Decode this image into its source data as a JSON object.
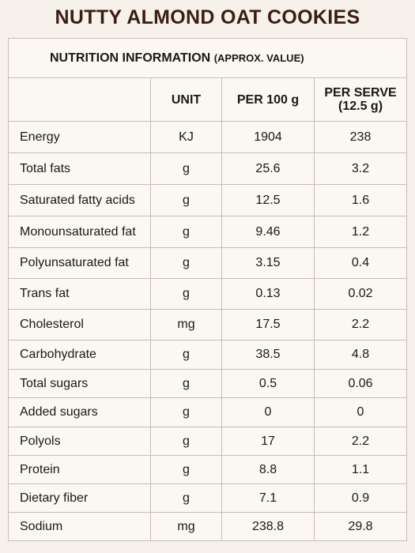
{
  "title": "NUTTY ALMOND OAT COOKIES",
  "table": {
    "title": "NUTRITION INFORMATION",
    "note": "(APPROX. VALUE)",
    "header": {
      "unit": "UNIT",
      "per_100g": "PER 100 g",
      "per_serve": "PER SERVE",
      "serve_size": "(12.5 g)"
    },
    "rows": [
      [
        "Energy",
        "KJ",
        "1904",
        "238"
      ],
      [
        "Total fats",
        "g",
        "25.6",
        "3.2"
      ],
      [
        "Saturated fatty acids",
        "g",
        "12.5",
        "1.6"
      ],
      [
        "Monounsaturated fat",
        "g",
        "9.46",
        "1.2"
      ],
      [
        "Polyunsaturated fat",
        "g",
        "3.15",
        "0.4"
      ],
      [
        "Trans fat",
        "g",
        "0.13",
        "0.02"
      ],
      [
        "Cholesterol",
        "mg",
        "17.5",
        "2.2"
      ],
      [
        "Carbohydrate",
        "g",
        "38.5",
        "4.8"
      ],
      [
        "Total sugars",
        "g",
        "0.5",
        "0.06"
      ],
      [
        "Added sugars",
        "g",
        "0",
        "0"
      ],
      [
        "Polyols",
        "g",
        "17",
        "2.2"
      ],
      [
        "Protein",
        "g",
        "8.8",
        "1.1"
      ],
      [
        "Dietary fiber",
        "g",
        "7.1",
        "0.9"
      ],
      [
        "Sodium",
        "mg",
        "238.8",
        "29.8"
      ]
    ]
  }
}
